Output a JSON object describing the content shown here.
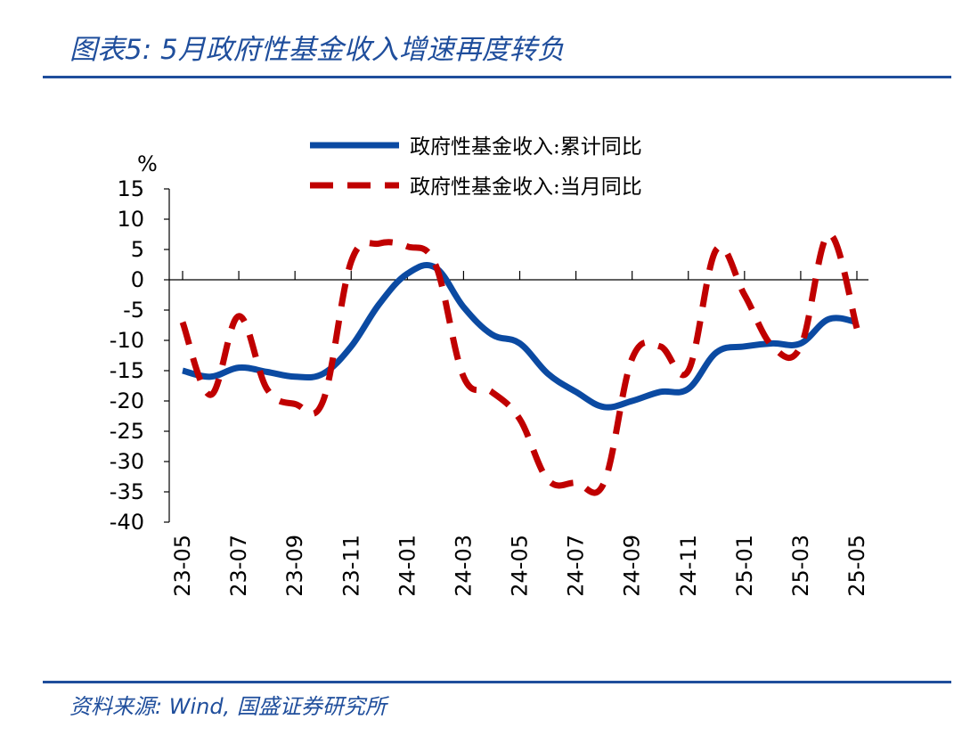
{
  "header": {
    "title": "图表5:  5月政府性基金收入增速再度转负"
  },
  "footer": {
    "source": "资料来源: Wind, 国盛证券研究所"
  },
  "colors": {
    "brand": "#1f4e9c",
    "series_cumulative": "#0b4aa2",
    "series_monthly": "#c00000"
  },
  "chart_data": {
    "type": "line",
    "ylabel": "%",
    "ylim": [
      -40,
      15
    ],
    "yticks": [
      15,
      10,
      5,
      0,
      -5,
      -10,
      -15,
      -20,
      -25,
      -30,
      -35,
      -40
    ],
    "x": [
      "23-05",
      "23-06",
      "23-07",
      "23-08",
      "23-09",
      "23-10",
      "23-11",
      "23-12",
      "24-01",
      "24-02",
      "24-03",
      "24-04",
      "24-05",
      "24-06",
      "24-07",
      "24-08",
      "24-09",
      "24-10",
      "24-11",
      "24-12",
      "25-01",
      "25-02",
      "25-03",
      "25-04",
      "25-05"
    ],
    "xticks": [
      "23-05",
      "23-07",
      "23-09",
      "23-11",
      "24-01",
      "24-03",
      "24-05",
      "24-07",
      "24-09",
      "24-11",
      "25-01",
      "25-03",
      "25-05"
    ],
    "grid": false,
    "legend_position": "top",
    "series": [
      {
        "name": "政府性基金收入:累计同比",
        "style": "solid",
        "values": [
          -15.0,
          -16.0,
          -14.5,
          -15.2,
          -16.0,
          -15.5,
          -11.0,
          -4.0,
          1.0,
          2.0,
          -4.5,
          -9.0,
          -10.5,
          -15.5,
          -18.5,
          -21.0,
          -20.0,
          -18.5,
          -18.0,
          -12.0,
          -11.0,
          -10.5,
          -10.5,
          -6.5,
          -7.0
        ]
      },
      {
        "name": "政府性基金收入:当月同比",
        "style": "dashed",
        "values": [
          -7.0,
          -19.0,
          -6.0,
          -18.0,
          -20.5,
          -20.0,
          3.0,
          6.0,
          5.5,
          2.5,
          -16.0,
          -18.5,
          -23.0,
          -33.0,
          -33.5,
          -33.5,
          -13.0,
          -11.0,
          -15.0,
          5.0,
          -2.5,
          -11.0,
          -11.0,
          7.5,
          -8.0
        ]
      }
    ]
  }
}
